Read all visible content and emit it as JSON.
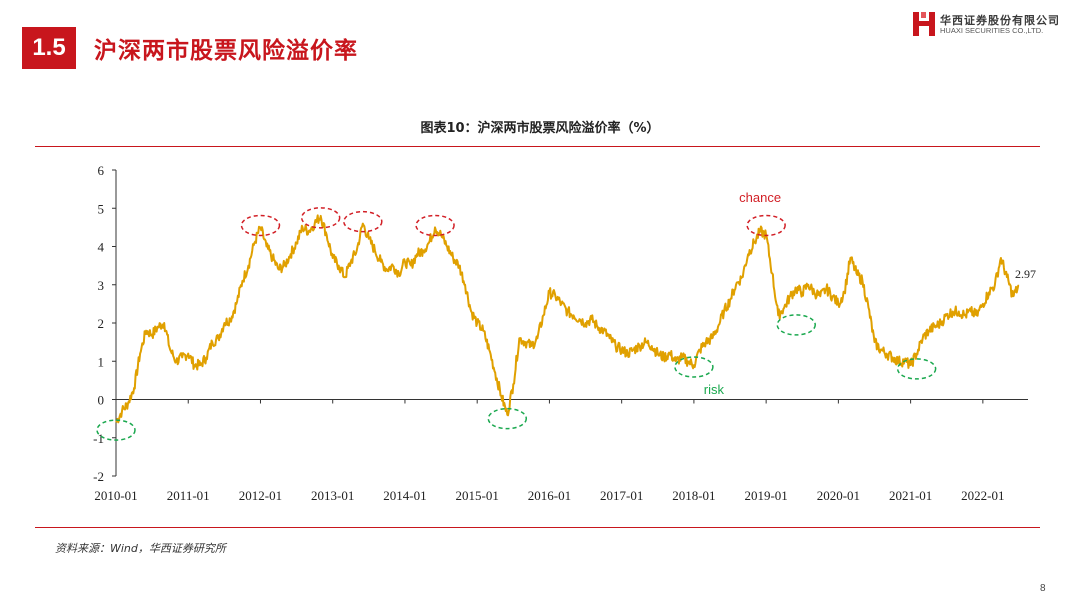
{
  "header": {
    "section_number": "1.5",
    "section_title": "沪深两市股票风险溢价率",
    "logo_cn": "华西证券股份有限公司",
    "logo_en": "HUAXI SECURITIES CO.,LTD.",
    "logo_color": "#c8161d"
  },
  "figure_title": "图表10：沪深两市股票风险溢价率（%）",
  "source": "资料来源：Wind，华西证券研究所",
  "page_number": "8",
  "colors": {
    "accent": "#c8161d",
    "line": "#e0a000",
    "chance_ellipse": "#d21f26",
    "risk_ellipse": "#1aa84e"
  },
  "chart_data": {
    "type": "line",
    "series": [
      {
        "points": [
          [
            "2010-01",
            -0.6
          ],
          [
            "2010-02",
            -0.3
          ],
          [
            "2010-03",
            -0.1
          ],
          [
            "2010-04",
            0.3
          ],
          [
            "2010-05",
            1.2
          ],
          [
            "2010-06",
            1.8
          ],
          [
            "2010-07",
            1.7
          ],
          [
            "2010-08",
            1.9
          ],
          [
            "2010-09",
            2.0
          ],
          [
            "2010-10",
            1.3
          ],
          [
            "2010-11",
            1.0
          ],
          [
            "2010-12",
            1.1
          ],
          [
            "2011-01",
            1.2
          ],
          [
            "2011-02",
            0.9
          ],
          [
            "2011-03",
            0.9
          ],
          [
            "2011-04",
            1.1
          ],
          [
            "2011-05",
            1.5
          ],
          [
            "2011-06",
            1.6
          ],
          [
            "2011-07",
            2.0
          ],
          [
            "2011-08",
            2.1
          ],
          [
            "2011-09",
            2.5
          ],
          [
            "2011-10",
            3.1
          ],
          [
            "2011-11",
            3.5
          ],
          [
            "2011-12",
            4.1
          ],
          [
            "2012-01",
            4.5
          ],
          [
            "2012-02",
            4.0
          ],
          [
            "2012-03",
            3.7
          ],
          [
            "2012-04",
            3.4
          ],
          [
            "2012-05",
            3.5
          ],
          [
            "2012-06",
            3.8
          ],
          [
            "2012-07",
            4.1
          ],
          [
            "2012-08",
            4.5
          ],
          [
            "2012-09",
            4.4
          ],
          [
            "2012-10",
            4.6
          ],
          [
            "2012-11",
            4.8
          ],
          [
            "2012-12",
            4.3
          ],
          [
            "2013-01",
            3.7
          ],
          [
            "2013-02",
            3.5
          ],
          [
            "2013-03",
            3.2
          ],
          [
            "2013-04",
            3.6
          ],
          [
            "2013-05",
            3.9
          ],
          [
            "2013-06",
            4.6
          ],
          [
            "2013-07",
            4.2
          ],
          [
            "2013-08",
            3.9
          ],
          [
            "2013-09",
            3.6
          ],
          [
            "2013-10",
            3.4
          ],
          [
            "2013-11",
            3.5
          ],
          [
            "2013-12",
            3.3
          ],
          [
            "2014-01",
            3.6
          ],
          [
            "2014-02",
            3.5
          ],
          [
            "2014-03",
            3.8
          ],
          [
            "2014-04",
            3.9
          ],
          [
            "2014-05",
            4.1
          ],
          [
            "2014-06",
            4.5
          ],
          [
            "2014-07",
            4.3
          ],
          [
            "2014-08",
            4.0
          ],
          [
            "2014-09",
            3.7
          ],
          [
            "2014-10",
            3.5
          ],
          [
            "2014-11",
            3.0
          ],
          [
            "2014-12",
            2.3
          ],
          [
            "2015-01",
            2.0
          ],
          [
            "2015-02",
            1.8
          ],
          [
            "2015-03",
            1.3
          ],
          [
            "2015-04",
            0.7
          ],
          [
            "2015-05",
            0.1
          ],
          [
            "2015-06",
            -0.4
          ],
          [
            "2015-07",
            0.4
          ],
          [
            "2015-08",
            1.6
          ],
          [
            "2015-09",
            1.5
          ],
          [
            "2015-10",
            1.4
          ],
          [
            "2015-11",
            1.6
          ],
          [
            "2015-12",
            2.2
          ],
          [
            "2016-01",
            2.8
          ],
          [
            "2016-02",
            2.7
          ],
          [
            "2016-03",
            2.5
          ],
          [
            "2016-04",
            2.3
          ],
          [
            "2016-05",
            2.2
          ],
          [
            "2016-06",
            2.1
          ],
          [
            "2016-07",
            2.0
          ],
          [
            "2016-08",
            2.1
          ],
          [
            "2016-09",
            1.9
          ],
          [
            "2016-10",
            1.8
          ],
          [
            "2016-11",
            1.6
          ],
          [
            "2016-12",
            1.4
          ],
          [
            "2017-01",
            1.3
          ],
          [
            "2017-02",
            1.2
          ],
          [
            "2017-03",
            1.3
          ],
          [
            "2017-04",
            1.4
          ],
          [
            "2017-05",
            1.5
          ],
          [
            "2017-06",
            1.4
          ],
          [
            "2017-07",
            1.2
          ],
          [
            "2017-08",
            1.1
          ],
          [
            "2017-09",
            1.2
          ],
          [
            "2017-10",
            1.0
          ],
          [
            "2017-11",
            1.1
          ],
          [
            "2017-12",
            1.0
          ],
          [
            "2018-01",
            0.9
          ],
          [
            "2018-02",
            1.3
          ],
          [
            "2018-03",
            1.5
          ],
          [
            "2018-04",
            1.6
          ],
          [
            "2018-05",
            1.9
          ],
          [
            "2018-06",
            2.3
          ],
          [
            "2018-07",
            2.6
          ],
          [
            "2018-08",
            3.0
          ],
          [
            "2018-09",
            3.2
          ],
          [
            "2018-10",
            3.8
          ],
          [
            "2018-11",
            4.1
          ],
          [
            "2018-12",
            4.4
          ],
          [
            "2019-01",
            4.3
          ],
          [
            "2019-02",
            3.3
          ],
          [
            "2019-03",
            2.2
          ],
          [
            "2019-04",
            2.4
          ],
          [
            "2019-05",
            2.7
          ],
          [
            "2019-06",
            2.9
          ],
          [
            "2019-07",
            2.8
          ],
          [
            "2019-08",
            3.0
          ],
          [
            "2019-09",
            2.8
          ],
          [
            "2019-10",
            2.7
          ],
          [
            "2019-11",
            2.9
          ],
          [
            "2019-12",
            2.7
          ],
          [
            "2020-01",
            2.5
          ],
          [
            "2020-02",
            2.8
          ],
          [
            "2020-03",
            3.7
          ],
          [
            "2020-04",
            3.3
          ],
          [
            "2020-05",
            3.1
          ],
          [
            "2020-06",
            2.4
          ],
          [
            "2020-07",
            1.5
          ],
          [
            "2020-08",
            1.3
          ],
          [
            "2020-09",
            1.2
          ],
          [
            "2020-10",
            1.1
          ],
          [
            "2020-11",
            1.0
          ],
          [
            "2020-12",
            1.0
          ],
          [
            "2021-01",
            0.9
          ],
          [
            "2021-02",
            1.2
          ],
          [
            "2021-03",
            1.6
          ],
          [
            "2021-04",
            1.8
          ],
          [
            "2021-05",
            1.9
          ],
          [
            "2021-06",
            2.0
          ],
          [
            "2021-07",
            2.2
          ],
          [
            "2021-08",
            2.3
          ],
          [
            "2021-09",
            2.3
          ],
          [
            "2021-10",
            2.2
          ],
          [
            "2021-11",
            2.3
          ],
          [
            "2021-12",
            2.2
          ],
          [
            "2022-01",
            2.5
          ],
          [
            "2022-02",
            2.8
          ],
          [
            "2022-03",
            3.0
          ],
          [
            "2022-04",
            3.7
          ],
          [
            "2022-05",
            3.2
          ],
          [
            "2022-06",
            2.7
          ],
          [
            "2022-07",
            2.97
          ]
        ]
      }
    ],
    "ylim": [
      -2,
      6
    ],
    "yticks": [
      "-2",
      "-1",
      "0",
      "1",
      "2",
      "3",
      "4",
      "5",
      "6"
    ],
    "xticks": [
      "2010-01",
      "2011-01",
      "2012-01",
      "2013-01",
      "2014-01",
      "2015-01",
      "2016-01",
      "2017-01",
      "2018-01",
      "2019-01",
      "2020-01",
      "2021-01",
      "2022-01"
    ],
    "end_label": "2.97",
    "annotations": [
      {
        "text": "chance",
        "near": "2019-01"
      },
      {
        "text": "risk",
        "near": "2018-01"
      }
    ],
    "markers": [
      {
        "kind": "chance",
        "x": "2012-01",
        "y": 4.55
      },
      {
        "kind": "chance",
        "x": "2012-11",
        "y": 4.75
      },
      {
        "kind": "chance",
        "x": "2013-06",
        "y": 4.65
      },
      {
        "kind": "chance",
        "x": "2014-06",
        "y": 4.55
      },
      {
        "kind": "chance",
        "x": "2019-01",
        "y": 4.55
      },
      {
        "kind": "risk",
        "x": "2010-01",
        "y": -0.8
      },
      {
        "kind": "risk",
        "x": "2015-06",
        "y": -0.5
      },
      {
        "kind": "risk",
        "x": "2018-01",
        "y": 0.85
      },
      {
        "kind": "risk",
        "x": "2019-06",
        "y": 1.95
      },
      {
        "kind": "risk",
        "x": "2021-02",
        "y": 0.8
      }
    ]
  }
}
